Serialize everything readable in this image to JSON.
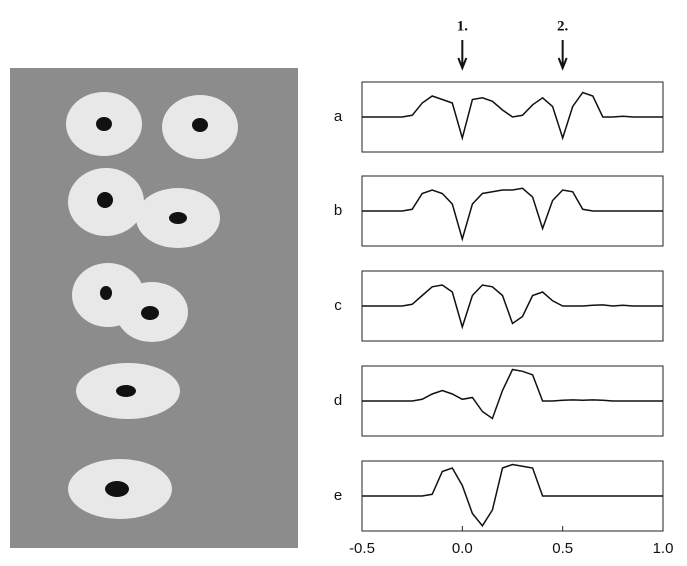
{
  "chart_data": [
    {
      "type": "line",
      "title": "a",
      "xlim": [
        -0.5,
        1.0
      ],
      "ylim": [
        -1,
        1
      ],
      "color": "#111111",
      "annotations": [
        {
          "text": "1.",
          "x": 0
        },
        {
          "text": "2.",
          "x": 0.5
        }
      ],
      "x": [
        -0.5,
        -0.45,
        -0.4,
        -0.35,
        -0.3,
        -0.25,
        -0.2,
        -0.15,
        -0.1,
        -0.05,
        0,
        0.05,
        0.1,
        0.15,
        0.2,
        0.25,
        0.3,
        0.35,
        0.4,
        0.45,
        0.5,
        0.55,
        0.6,
        0.65,
        0.7,
        0.75,
        0.8,
        0.85,
        0.9,
        0.95,
        1.0
      ],
      "values": [
        0,
        0,
        0,
        0,
        0,
        0.05,
        0.4,
        0.6,
        0.5,
        0.4,
        -0.6,
        0.5,
        0.55,
        0.45,
        0.2,
        0,
        0.05,
        0.35,
        0.55,
        0.3,
        -0.6,
        0.3,
        0.7,
        0.6,
        0,
        0,
        0.02,
        0,
        0,
        0,
        0
      ]
    },
    {
      "type": "line",
      "title": "b",
      "xlim": [
        -0.5,
        1.0
      ],
      "ylim": [
        -1,
        1
      ],
      "color": "#111111",
      "x": [
        -0.5,
        -0.45,
        -0.4,
        -0.35,
        -0.3,
        -0.25,
        -0.2,
        -0.15,
        -0.1,
        -0.05,
        0,
        0.05,
        0.1,
        0.15,
        0.2,
        0.25,
        0.3,
        0.35,
        0.4,
        0.45,
        0.5,
        0.55,
        0.6,
        0.65,
        0.7,
        0.75,
        0.8,
        0.85,
        0.9,
        0.95,
        1.0
      ],
      "values": [
        0,
        0,
        0,
        0,
        0,
        0.05,
        0.5,
        0.6,
        0.5,
        0.2,
        -0.8,
        0.2,
        0.5,
        0.55,
        0.6,
        0.6,
        0.65,
        0.4,
        -0.5,
        0.3,
        0.6,
        0.55,
        0.05,
        0,
        0,
        0,
        0,
        0,
        0,
        0,
        0
      ]
    },
    {
      "type": "line",
      "title": "c",
      "xlim": [
        -0.5,
        1.0
      ],
      "ylim": [
        -1,
        1
      ],
      "color": "#111111",
      "x": [
        -0.5,
        -0.45,
        -0.4,
        -0.35,
        -0.3,
        -0.25,
        -0.2,
        -0.15,
        -0.1,
        -0.05,
        0,
        0.05,
        0.1,
        0.15,
        0.2,
        0.25,
        0.3,
        0.35,
        0.4,
        0.45,
        0.5,
        0.55,
        0.6,
        0.65,
        0.7,
        0.75,
        0.8,
        0.85,
        0.9,
        0.95,
        1.0
      ],
      "values": [
        0,
        0,
        0,
        0,
        0,
        0.05,
        0.3,
        0.55,
        0.6,
        0.4,
        -0.6,
        0.3,
        0.6,
        0.55,
        0.3,
        -0.5,
        -0.3,
        0.3,
        0.4,
        0.15,
        0,
        0,
        0,
        0.02,
        0.03,
        0,
        0.02,
        0,
        0,
        0,
        0
      ]
    },
    {
      "type": "line",
      "title": "d",
      "xlim": [
        -0.5,
        1.0
      ],
      "ylim": [
        -1,
        1
      ],
      "color": "#111111",
      "x": [
        -0.5,
        -0.45,
        -0.4,
        -0.35,
        -0.3,
        -0.25,
        -0.2,
        -0.15,
        -0.1,
        -0.05,
        0,
        0.05,
        0.1,
        0.15,
        0.2,
        0.25,
        0.3,
        0.35,
        0.4,
        0.45,
        0.5,
        0.55,
        0.6,
        0.65,
        0.7,
        0.75,
        0.8,
        0.85,
        0.9,
        0.95,
        1.0
      ],
      "values": [
        0,
        0,
        0,
        0,
        0,
        0,
        0.05,
        0.2,
        0.3,
        0.2,
        0.05,
        0.1,
        -0.3,
        -0.5,
        0.3,
        0.9,
        0.85,
        0.75,
        0,
        0,
        0.02,
        0.03,
        0.02,
        0.03,
        0.02,
        0,
        0,
        0,
        0,
        0,
        0
      ]
    },
    {
      "type": "line",
      "title": "e",
      "xlim": [
        -0.5,
        1.0
      ],
      "ylim": [
        -1,
        1
      ],
      "color": "#111111",
      "x": [
        -0.5,
        -0.45,
        -0.4,
        -0.35,
        -0.3,
        -0.25,
        -0.2,
        -0.15,
        -0.1,
        -0.05,
        0,
        0.05,
        0.1,
        0.15,
        0.2,
        0.25,
        0.3,
        0.35,
        0.4,
        0.45,
        0.5,
        0.55,
        0.6,
        0.65,
        0.7,
        0.75,
        0.8,
        0.85,
        0.9,
        0.95,
        1.0
      ],
      "values": [
        0,
        0,
        0,
        0,
        0,
        0,
        0,
        0.05,
        0.7,
        0.8,
        0.3,
        -0.5,
        -0.85,
        -0.4,
        0.8,
        0.9,
        0.85,
        0.8,
        0,
        0,
        0,
        0,
        0,
        0,
        0,
        0,
        0,
        0,
        0,
        0,
        0
      ],
      "xticks": [
        -0.5,
        {
          "value": 0,
          "label": "0.0"
        },
        0.5,
        {
          "value": 1,
          "label": "1.0"
        }
      ]
    }
  ]
}
